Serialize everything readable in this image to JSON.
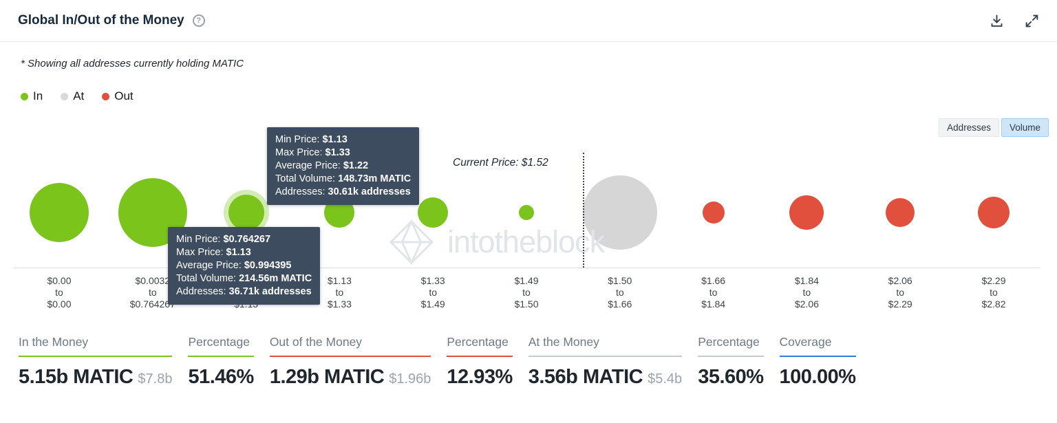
{
  "colors": {
    "in": "#7ac41c",
    "at": "#d6d6d6",
    "out": "#e1503c",
    "coverage": "#2e7fd1",
    "tooltip_bg": "#3d4c5f",
    "volume_selected_bg": "#cfe6f9"
  },
  "header": {
    "title": "Global In/Out of the Money",
    "help": "?"
  },
  "subtitle": "* Showing all addresses currently holding MATIC",
  "legend": {
    "in": "In",
    "at": "At",
    "out": "Out"
  },
  "view_toggle": {
    "addresses": "Addresses",
    "volume": "Volume",
    "selected": "Volume"
  },
  "watermark": "intotheblock",
  "chart_data": {
    "type": "bubble",
    "title": "Global In/Out of the Money",
    "note": "* Showing all addresses currently holding MATIC",
    "current_price": "$1.52",
    "current_price_label": "Current Price: $1.52",
    "range_separator": "to",
    "x_axis": "price range buckets of addresses holding MATIC",
    "buckets": [
      {
        "min": "$0.00",
        "max": "$0.00",
        "status": "in",
        "size": 43
      },
      {
        "min": "$0.0032",
        "max": "$0.764267",
        "status": "in",
        "size": 50
      },
      {
        "min": "$0.764267",
        "max": "$1.13",
        "status": "in",
        "size": 26,
        "highlighted": true,
        "avg_price": "$0.994395",
        "total_volume": "214.56m MATIC",
        "addresses": "36.71k addresses"
      },
      {
        "min": "$1.13",
        "max": "$1.33",
        "status": "in",
        "size": 22,
        "avg_price": "$1.22",
        "total_volume": "148.73m MATIC",
        "addresses": "30.61k addresses"
      },
      {
        "min": "$1.33",
        "max": "$1.49",
        "status": "in",
        "size": 22
      },
      {
        "min": "$1.49",
        "max": "$1.50",
        "status": "in",
        "size": 11
      },
      {
        "min": "$1.50",
        "max": "$1.66",
        "status": "at",
        "size": 54
      },
      {
        "min": "$1.66",
        "max": "$1.84",
        "status": "out",
        "size": 16
      },
      {
        "min": "$1.84",
        "max": "$2.06",
        "status": "out",
        "size": 25
      },
      {
        "min": "$2.06",
        "max": "$2.29",
        "status": "out",
        "size": 21
      },
      {
        "min": "$2.29",
        "max": "$2.82",
        "status": "out",
        "size": 23
      }
    ]
  },
  "tooltips": [
    {
      "rows": [
        {
          "label": "Min Price:",
          "value": "$1.13"
        },
        {
          "label": "Max Price:",
          "value": "$1.33"
        },
        {
          "label": "Average Price:",
          "value": "$1.22"
        },
        {
          "label": "Total Volume:",
          "value": "148.73m MATIC"
        },
        {
          "label": "Addresses:",
          "value": "30.61k addresses"
        }
      ]
    },
    {
      "rows": [
        {
          "label": "Min Price:",
          "value": "$0.764267"
        },
        {
          "label": "Max Price:",
          "value": "$1.13"
        },
        {
          "label": "Average Price:",
          "value": "$0.994395"
        },
        {
          "label": "Total Volume:",
          "value": "214.56m MATIC"
        },
        {
          "label": "Addresses:",
          "value": "36.71k addresses"
        }
      ]
    }
  ],
  "stats": [
    {
      "header": "In the Money",
      "value": "5.15b MATIC",
      "secondary": "$7.8b"
    },
    {
      "header": "Percentage",
      "value": "51.46%",
      "secondary": ""
    },
    {
      "header": "Out of the Money",
      "value": "1.29b MATIC",
      "secondary": "$1.96b"
    },
    {
      "header": "Percentage",
      "value": "12.93%",
      "secondary": ""
    },
    {
      "header": "At the Money",
      "value": "3.56b MATIC",
      "secondary": "$5.4b"
    },
    {
      "header": "Percentage",
      "value": "35.60%",
      "secondary": ""
    },
    {
      "header": "Coverage",
      "value": "100.00%",
      "secondary": ""
    }
  ]
}
